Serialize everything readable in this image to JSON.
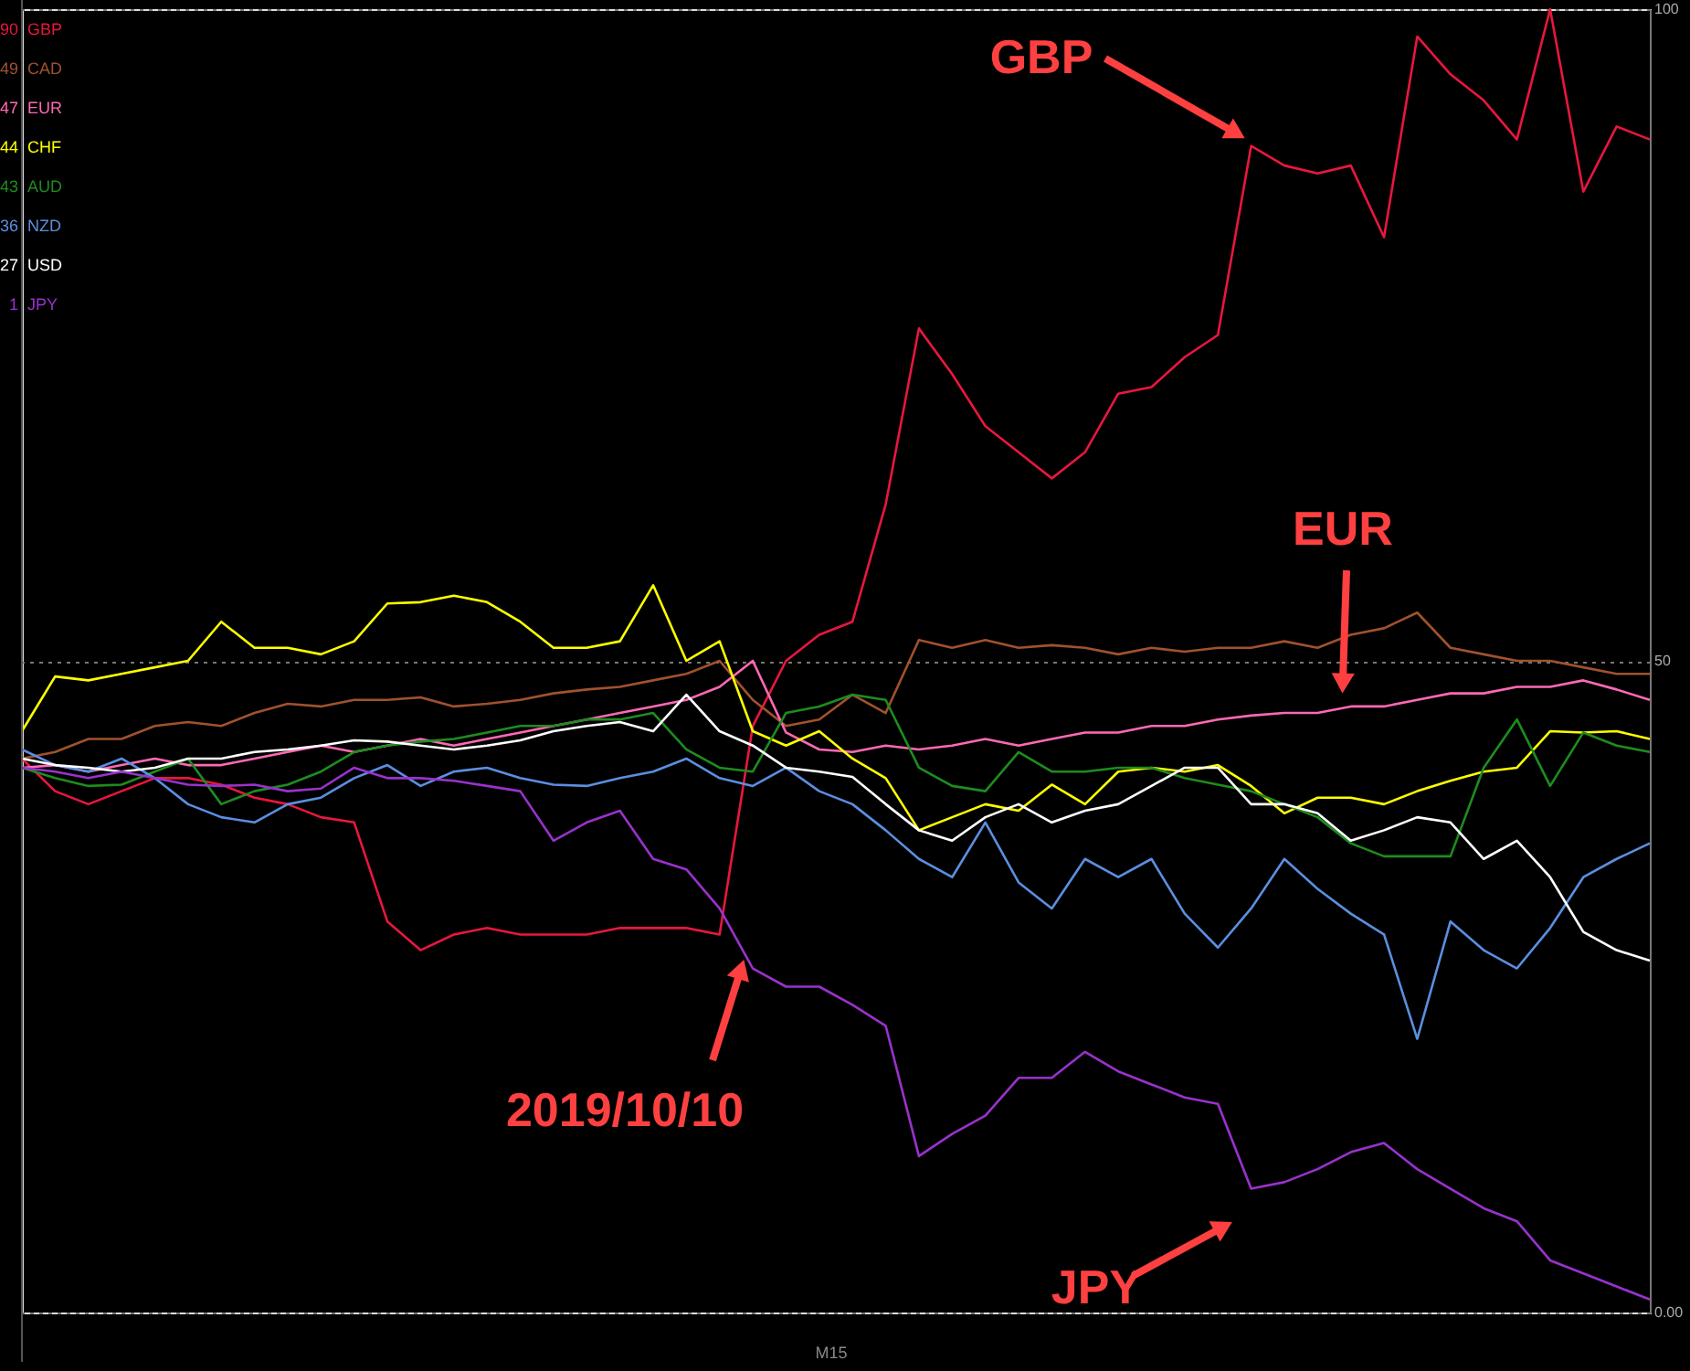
{
  "chart_data": {
    "type": "line",
    "categories": [
      null,
      null,
      null,
      null,
      null,
      null,
      null,
      null,
      null,
      null,
      null,
      null,
      null,
      null,
      null,
      null,
      null,
      null,
      null,
      null,
      null,
      null,
      null,
      null,
      null,
      null,
      null,
      null,
      null,
      null,
      null,
      null,
      null,
      null,
      null,
      null,
      null,
      null,
      null,
      null,
      null,
      null,
      null,
      null,
      null,
      null,
      null,
      null,
      null,
      null
    ],
    "series": [
      {
        "name": "90 GBP",
        "color": "#e8173e",
        "values": [
          42.5,
          40,
          39,
          40,
          41,
          41,
          40.5,
          39.5,
          39,
          38,
          37.6,
          30,
          27.8,
          29,
          29.5,
          29,
          29,
          29,
          29.5,
          29.5,
          29.5,
          29,
          45,
          50,
          52,
          53,
          62,
          75.5,
          72,
          68,
          66,
          64,
          66,
          70.5,
          71,
          73.3,
          75,
          89.5,
          88,
          87.4,
          88,
          82.5,
          97.9,
          95,
          93,
          90,
          100,
          86,
          91,
          90
        ]
      },
      {
        "name": "49 CAD",
        "color": "#a0522d",
        "values": [
          42.5,
          43,
          44,
          44,
          45,
          45.3,
          45,
          46,
          46.7,
          46.5,
          47,
          47,
          47.2,
          46.5,
          46.7,
          47,
          47.5,
          47.8,
          48,
          48.5,
          49,
          50,
          47,
          45,
          45.5,
          47.4,
          46,
          51.6,
          51,
          51.6,
          51,
          51.2,
          51,
          50.5,
          51,
          50.7,
          51,
          51,
          51.5,
          51,
          52,
          52.5,
          53.7,
          51,
          50.5,
          50,
          50,
          49.5,
          49,
          49
        ]
      },
      {
        "name": "47 EUR",
        "color": "#ff69b4",
        "values": [
          41.8,
          42,
          41.5,
          42,
          42.5,
          42,
          42,
          42.5,
          43,
          43.5,
          43,
          43.5,
          44,
          43.5,
          44,
          44.5,
          45,
          45.5,
          46,
          46.5,
          47,
          48,
          50,
          44.5,
          43.2,
          43,
          43.5,
          43.2,
          43.5,
          44,
          43.5,
          44,
          44.5,
          44.5,
          45,
          45,
          45.5,
          45.8,
          46,
          46,
          46.5,
          46.5,
          47,
          47.5,
          47.5,
          48,
          48,
          48.5,
          47.8,
          47
        ]
      },
      {
        "name": "44 CHF",
        "color": "#ffff00",
        "values": [
          44.6,
          48.8,
          48.5,
          49,
          49.5,
          50,
          53,
          51,
          51,
          50.5,
          51.5,
          54.4,
          54.5,
          55,
          54.5,
          53,
          51,
          51,
          51.5,
          55.8,
          50,
          51.5,
          44.6,
          43.5,
          44.6,
          42.5,
          41,
          37,
          38,
          39,
          38.5,
          40.5,
          39,
          41.5,
          41.8,
          41.5,
          42,
          40.4,
          38.3,
          39.5,
          39.5,
          39,
          40,
          40.8,
          41.5,
          41.8,
          44.6,
          44.5,
          44.6,
          44
        ]
      },
      {
        "name": "43 AUD",
        "color": "#1e8c1e",
        "values": [
          41.8,
          41,
          40.4,
          40.5,
          41.5,
          42.5,
          39,
          40,
          40.5,
          41.5,
          43,
          43.5,
          43.8,
          44,
          44.5,
          45,
          45,
          45.5,
          45.5,
          46,
          43.2,
          41.8,
          41.5,
          46,
          46.5,
          47.4,
          47,
          41.8,
          40.4,
          40,
          43,
          41.5,
          41.5,
          41.8,
          41.8,
          41,
          40.5,
          40,
          39,
          38,
          36,
          35,
          35,
          35,
          41.8,
          45.5,
          40.4,
          44.5,
          43.5,
          43
        ]
      },
      {
        "name": "36 NZD",
        "color": "#5b8fe0",
        "values": [
          43.2,
          42,
          41.5,
          42.5,
          41,
          39,
          38,
          37.6,
          39,
          39.5,
          41,
          42,
          40.4,
          41.5,
          41.8,
          41,
          40.5,
          40.4,
          41,
          41.5,
          42.5,
          41,
          40.4,
          41.8,
          40,
          39,
          37,
          34.8,
          33.4,
          37.6,
          33,
          31,
          34.8,
          33.4,
          34.8,
          30.6,
          28,
          31,
          34.8,
          32.5,
          30.6,
          29,
          21,
          30,
          27.8,
          26.4,
          29.5,
          33.4,
          34.8,
          36
        ]
      },
      {
        "name": "27 USD",
        "color": "#ffffff",
        "values": [
          42.5,
          42,
          41.8,
          41.5,
          41.8,
          42.5,
          42.5,
          43,
          43.2,
          43.5,
          43.9,
          43.8,
          43.5,
          43.2,
          43.5,
          43.9,
          44.6,
          45,
          45.3,
          44.6,
          47.4,
          44.6,
          43.5,
          41.8,
          41.5,
          41.1,
          39,
          37,
          36.2,
          38,
          39,
          37.6,
          38.5,
          39,
          40.4,
          41.8,
          41.8,
          39,
          39,
          38.3,
          36.2,
          37,
          38,
          37.6,
          34.8,
          36.2,
          33.4,
          29.2,
          27.8,
          27
        ]
      },
      {
        "name": "1 JPY",
        "color": "#9932cc",
        "values": [
          41.8,
          41.5,
          41,
          41.5,
          41,
          40.5,
          40.4,
          40.5,
          40,
          40.2,
          41.8,
          41,
          41,
          40.8,
          40.4,
          40,
          36.2,
          37.6,
          38.5,
          34.8,
          34,
          31,
          26.4,
          25,
          25,
          23.6,
          22,
          12,
          13.7,
          15.1,
          18,
          18,
          20,
          18.5,
          17.5,
          16.5,
          16,
          9.5,
          10,
          11,
          12.3,
          13,
          11,
          9.5,
          8,
          7,
          4,
          3,
          2,
          1
        ]
      }
    ],
    "ylim": [
      0,
      100
    ],
    "yticks": [
      {
        "value": 0,
        "label": "0.00"
      },
      50,
      100
    ],
    "grid": "y",
    "annotations": [
      "GBP",
      "EUR",
      "2019/10/10",
      "JPY",
      "M15"
    ]
  }
}
